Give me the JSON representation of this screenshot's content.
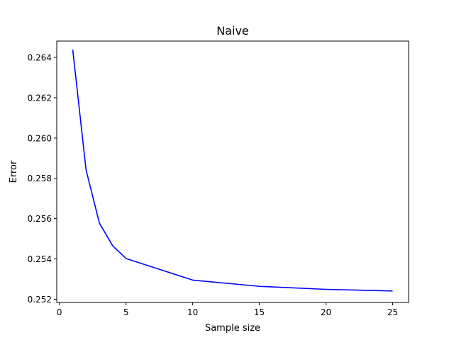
{
  "chart_data": {
    "type": "line",
    "title": "Naive",
    "xlabel": "Sample size",
    "ylabel": "Error",
    "xlim": [
      -0.2,
      26.2
    ],
    "ylim": [
      0.25184,
      0.26481
    ],
    "xticks": [
      0,
      5,
      10,
      15,
      20,
      25
    ],
    "yticks": [
      0.252,
      0.254,
      0.256,
      0.258,
      0.26,
      0.262,
      0.264
    ],
    "ytick_labels": [
      "0.252",
      "0.254",
      "0.256",
      "0.258",
      "0.260",
      "0.262",
      "0.264"
    ],
    "grid": false,
    "series": [
      {
        "color": "#0000ff",
        "x": [
          1,
          2,
          3,
          4,
          5,
          10,
          15,
          20,
          25
        ],
        "y": [
          0.26438,
          0.25842,
          0.25578,
          0.25465,
          0.25402,
          0.25295,
          0.25264,
          0.25249,
          0.25241
        ]
      }
    ]
  }
}
